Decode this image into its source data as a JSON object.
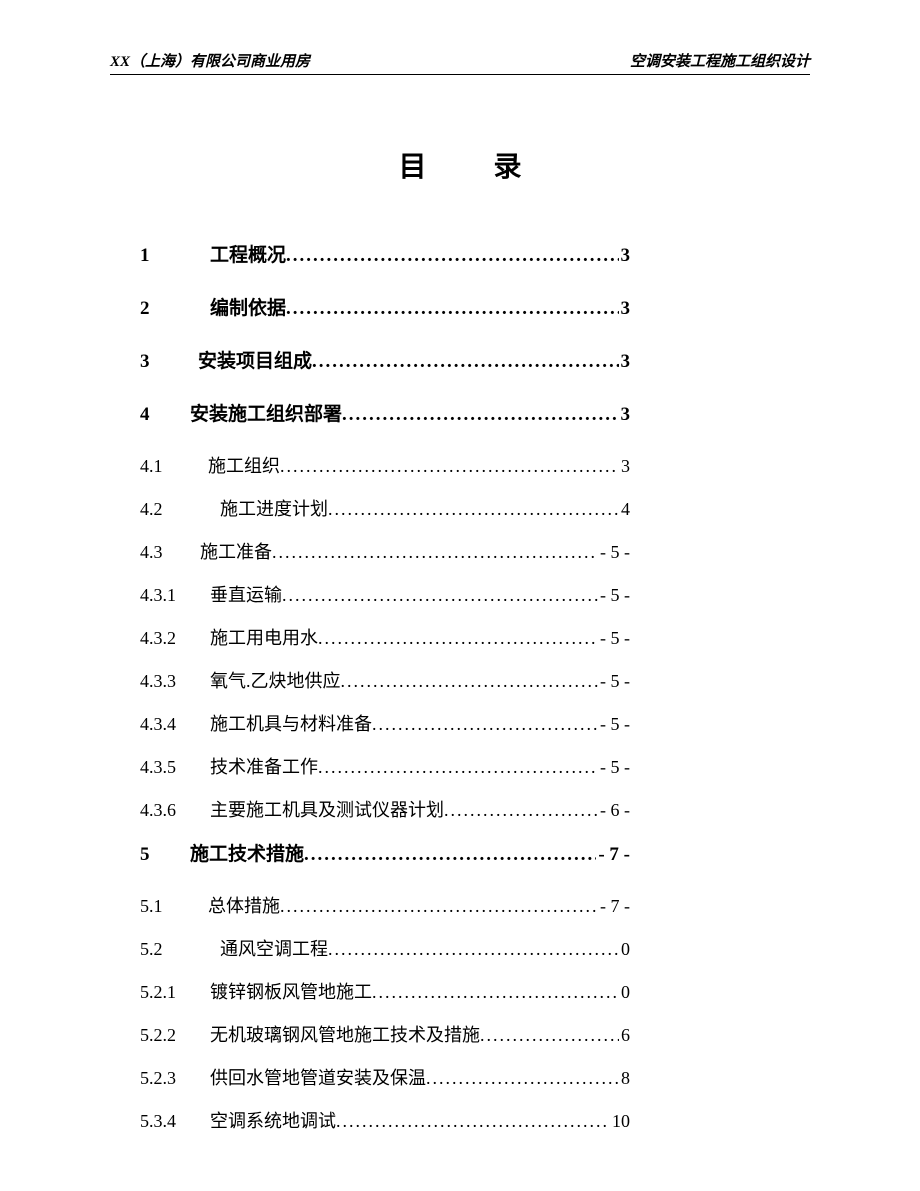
{
  "header": {
    "left": "XX（上海）有限公司商业用房",
    "right": "空调安装工程施工组织设计"
  },
  "title": "目 录",
  "leader_fill": "................................................................................",
  "toc": [
    {
      "num": "1",
      "text": "工程概况",
      "page": "3",
      "level": 1,
      "indent": 1
    },
    {
      "num": "2",
      "text": "编制依据",
      "page": "3",
      "level": 1,
      "indent": 1
    },
    {
      "num": "3",
      "text": "安装项目组成 ",
      "page": "3",
      "level": 1,
      "indent": 2
    },
    {
      "num": "4",
      "text": "安装施工组织部署 ",
      "page": "3",
      "level": 1,
      "indent": 0
    },
    {
      "num": "4.1",
      "text": "施工组织",
      "page": "3",
      "level": 2,
      "indent": 2
    },
    {
      "num": "4.2",
      "text": "施工进度计划",
      "page": "4",
      "level": 2,
      "indent": 1
    },
    {
      "num": "4.3",
      "text": "施工准备 ",
      "page": "- 5 -",
      "level": 2,
      "indent": 0
    },
    {
      "num": "4.3.1",
      "text": "垂直运输 ",
      "page": "- 5 -",
      "level": 3,
      "indent": 0
    },
    {
      "num": "4.3.2",
      "text": "施工用电用水 ",
      "page": "- 5 -",
      "level": 3,
      "indent": 0
    },
    {
      "num": "4.3.3",
      "text": "氧气.乙炔地供应 ",
      "page": "- 5 -",
      "level": 3,
      "indent": 0
    },
    {
      "num": "4.3.4",
      "text": "施工机具与材料准备 ",
      "page": "- 5 -",
      "level": 3,
      "indent": 0
    },
    {
      "num": "4.3.5",
      "text": "技术准备工作 ",
      "page": "- 5 -",
      "level": 3,
      "indent": 0
    },
    {
      "num": "4.3.6",
      "text": "主要施工机具及测试仪器计划",
      "page": "- 6 -",
      "level": 3,
      "indent": 0
    },
    {
      "num": "5",
      "text": "施工技术措施",
      "page": "- 7 -",
      "level": 1,
      "indent": 0
    },
    {
      "num": "5.1",
      "text": "总体措施",
      "page": "- 7 -",
      "level": 2,
      "indent": 2
    },
    {
      "num": "5.2",
      "text": "通风空调工程",
      "page": "0",
      "level": 2,
      "indent": 1
    },
    {
      "num": "5.2.1",
      "text": "镀锌钢板风管地施工",
      "page": "0",
      "level": 3,
      "indent": 0
    },
    {
      "num": "5.2.2",
      "text": "无机玻璃钢风管地施工技术及措施",
      "page": "6",
      "level": 3,
      "indent": 0
    },
    {
      "num": "5.2.3",
      "text": "供回水管地管道安装及保温",
      "page": "8",
      "level": 3,
      "indent": 0
    },
    {
      "num": "5.3.4",
      "text": "空调系统地调试",
      "page": "10",
      "level": 3,
      "indent": 0
    }
  ]
}
